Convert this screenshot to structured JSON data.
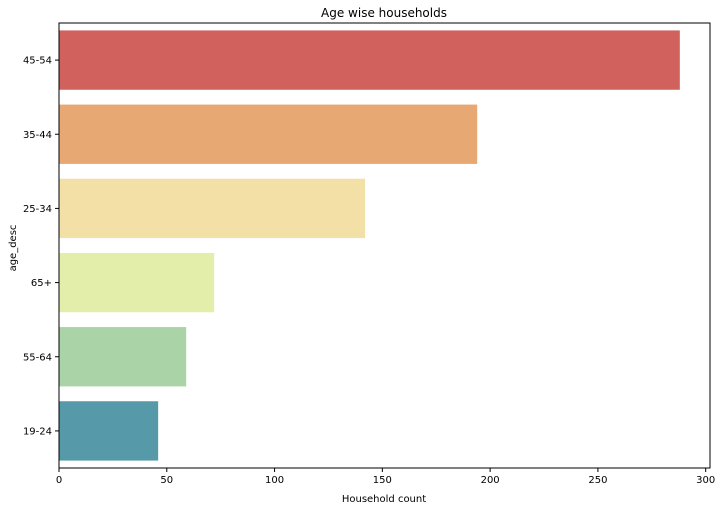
{
  "chart_data": {
    "type": "bar",
    "orientation": "horizontal",
    "title": "Age wise households",
    "xlabel": "Household count",
    "ylabel": "age_desc",
    "categories": [
      "45-54",
      "35-44",
      "25-34",
      "65+",
      "55-64",
      "19-24"
    ],
    "values": [
      288,
      194,
      142,
      72,
      59,
      46
    ],
    "colors": [
      "#d0615d",
      "#e8a873",
      "#f2e0a6",
      "#e3eeaa",
      "#aad3a8",
      "#5699a9"
    ],
    "xlim": [
      0,
      302
    ],
    "xticks": [
      0,
      50,
      100,
      150,
      200,
      250,
      300
    ],
    "grid": false,
    "legend": "none"
  }
}
